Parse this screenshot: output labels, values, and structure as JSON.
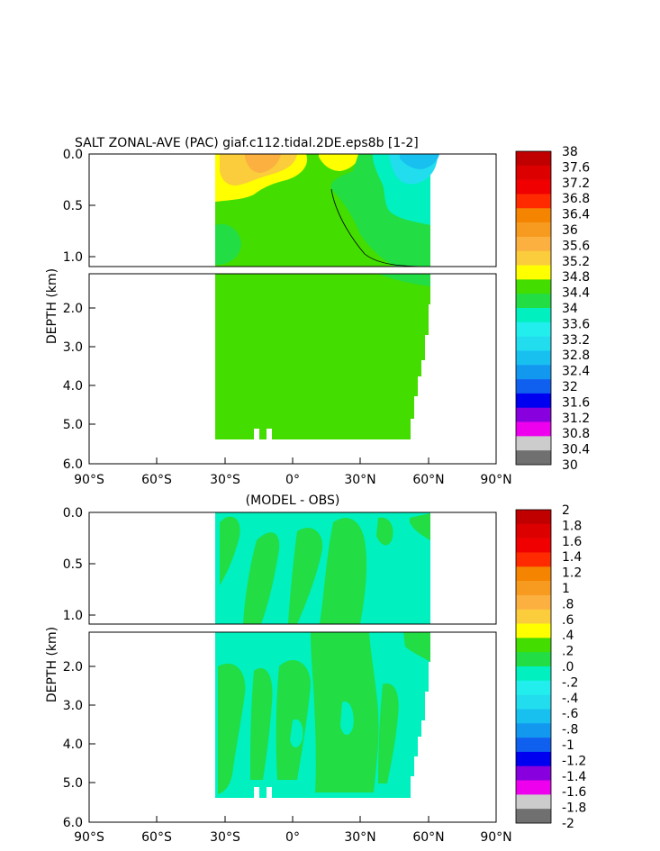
{
  "chart_data": [
    {
      "type": "heatmap",
      "title": "SALT ZONAL-AVE (PAC) giaf.c112.tidal.2DE.eps8b [1-2]",
      "ylabel": "DEPTH (km)",
      "xticks": [
        "90°S",
        "60°S",
        "30°S",
        "0°",
        "30°N",
        "60°N",
        "90°N"
      ],
      "yticks": [
        "0.0",
        "0.5",
        "1.0",
        "2.0",
        "3.0",
        "4.0",
        "5.0",
        "6.0"
      ],
      "xlim": [
        -90,
        90
      ],
      "ylim": [
        6.0,
        0.0
      ],
      "colorbar": {
        "labels": [
          "38",
          "37.6",
          "37.2",
          "36.8",
          "36.4",
          "36",
          "35.6",
          "35.2",
          "34.8",
          "34.4",
          "34",
          "33.6",
          "33.2",
          "32.8",
          "32.4",
          "32",
          "31.6",
          "31.2",
          "30.8",
          "30.4",
          "30"
        ],
        "colors": [
          "#c00000",
          "#dd0000",
          "#f00000",
          "#ff2a00",
          "#f58400",
          "#f79a20",
          "#fbb040",
          "#fbcc3c",
          "#ffff00",
          "#44dd00",
          "#22dd44",
          "#00f0c0",
          "#22eeee",
          "#22ddee",
          "#18c0f0",
          "#1398f0",
          "#1060f0",
          "#0000f0",
          "#8800dd",
          "#ee00ee",
          "#cccccc",
          "#707070"
        ]
      }
    },
    {
      "type": "heatmap",
      "title": "(MODEL - OBS)",
      "ylabel": "DEPTH (km)",
      "xticks": [
        "90°S",
        "60°S",
        "30°S",
        "0°",
        "30°N",
        "60°N",
        "90°N"
      ],
      "yticks": [
        "0.0",
        "0.5",
        "1.0",
        "2.0",
        "3.0",
        "4.0",
        "5.0",
        "6.0"
      ],
      "xlim": [
        -90,
        90
      ],
      "ylim": [
        6.0,
        0.0
      ],
      "colorbar": {
        "labels": [
          "2",
          "1.8",
          "1.6",
          "1.4",
          "1.2",
          "1",
          ".8",
          ".6",
          ".4",
          ".2",
          ".0",
          "-.2",
          "-.4",
          "-.6",
          "-.8",
          "-1",
          "-1.2",
          "-1.4",
          "-1.6",
          "-1.8",
          "-2"
        ],
        "colors": [
          "#c00000",
          "#dd0000",
          "#f00000",
          "#ff2a00",
          "#f58400",
          "#f79a20",
          "#fbb040",
          "#fbcc3c",
          "#ffff00",
          "#44dd00",
          "#22dd44",
          "#00f0c0",
          "#22eeee",
          "#22ddee",
          "#18c0f0",
          "#1398f0",
          "#1060f0",
          "#0000f0",
          "#8800dd",
          "#ee00ee",
          "#cccccc",
          "#707070"
        ]
      }
    }
  ]
}
